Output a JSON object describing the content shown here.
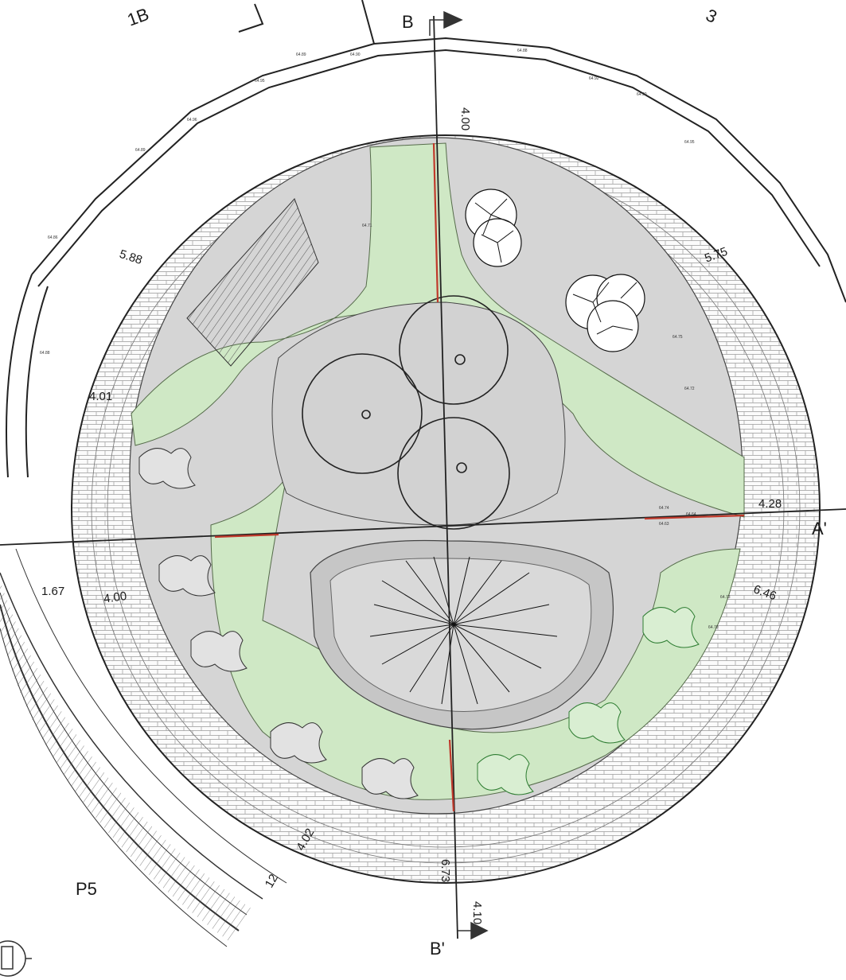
{
  "sheet": {
    "zone_labels": [
      "1B",
      "3",
      "P5"
    ],
    "section_marks": {
      "north": "B",
      "south": "B'",
      "east": "A'"
    },
    "dimensions": [
      "4.00",
      "5.75",
      "5.88",
      "4.01",
      "4.28",
      "6.46",
      "1.67",
      "4.00",
      "4.02",
      "12",
      "6.73",
      "4.10"
    ],
    "levels": [
      "64.89",
      "64.90",
      "64.95",
      "64.96",
      "64.89",
      "64.88",
      "64.92",
      "64.90",
      "64.95",
      "64.86",
      "64.88",
      "64.75",
      "64.72",
      "64.74",
      "64.64",
      "64.63",
      "64.73",
      "64.70",
      "64.71"
    ]
  },
  "colors": {
    "lawn": "#cfe8c5",
    "planting_bed": "#d5d5d5",
    "paving_lines": "#8a8a8a",
    "section_red": "#c0392b",
    "ink": "#1a1a1a"
  },
  "icons": [
    "north-arrow-icon",
    "section-arrow-icon",
    "tree-symbol-icon",
    "shrub-symbol-icon"
  ]
}
